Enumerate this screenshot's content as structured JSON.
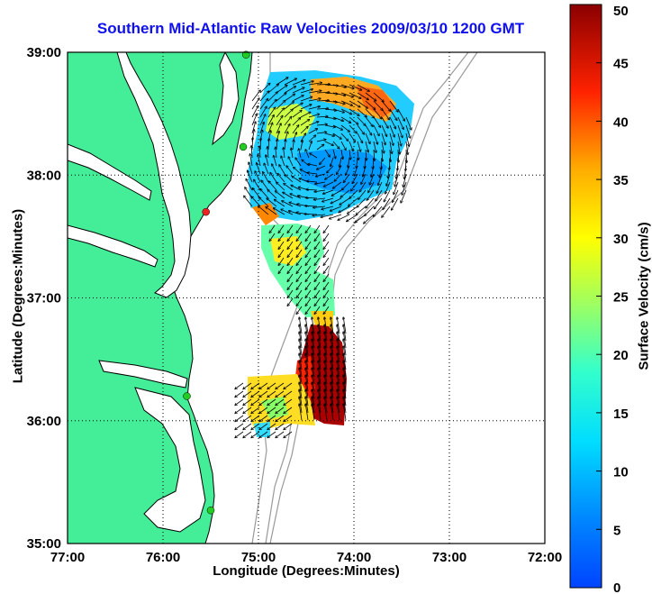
{
  "title": "Southern Mid-Atlantic Raw Velocities 2009/03/10 1200 GMT",
  "xlabel": "Longitude (Degrees:Minutes)",
  "ylabel": "Latitude (Degrees:Minutes)",
  "colorbar": {
    "label": "Surface Velocity (cm/s)",
    "ticks": [
      "50",
      "45",
      "40",
      "35",
      "30",
      "25",
      "20",
      "15",
      "10",
      "5",
      "0"
    ],
    "range": [
      0,
      50
    ],
    "colormap": "jet"
  },
  "map": {
    "lon_range": [
      -77,
      -72
    ],
    "lat_range": [
      35,
      39
    ],
    "x_ticks": [
      "77:00",
      "76:00",
      "75:00",
      "74:00",
      "73:00",
      "72:00"
    ],
    "y_ticks": [
      "39:00",
      "38:00",
      "37:00",
      "36:00",
      "35:00"
    ],
    "land_color": "#44ee99",
    "grid": "dotted"
  },
  "sites": [
    {
      "name": "green-site",
      "lon": -75.13,
      "lat": 38.98,
      "color": "#22cc22"
    },
    {
      "name": "green-site",
      "lon": -75.16,
      "lat": 38.23,
      "color": "#22cc22"
    },
    {
      "name": "red-site",
      "lon": -75.55,
      "lat": 37.7,
      "color": "#ee2222"
    },
    {
      "name": "green-site",
      "lon": -75.75,
      "lat": 36.2,
      "color": "#22cc22"
    },
    {
      "name": "green-site",
      "lon": -75.5,
      "lat": 35.27,
      "color": "#22cc22"
    }
  ]
}
